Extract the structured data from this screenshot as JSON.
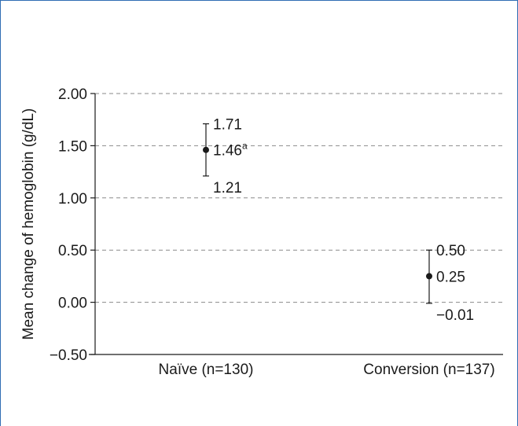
{
  "chart_data": {
    "type": "scatter",
    "ylabel": "Mean change of hemoglobin (g/dL)",
    "ylim": [
      -0.5,
      2.0
    ],
    "yticks": [
      2.0,
      1.5,
      1.0,
      0.5,
      0.0,
      -0.5
    ],
    "ytick_labels": [
      "2.00",
      "1.50",
      "1.00",
      "0.50",
      "0.00",
      "−0.50"
    ],
    "grid": "horizontal dashed",
    "categories": [
      "Naïve (n=130)",
      "Conversion (n=137)"
    ],
    "points": [
      {
        "category": "Naïve (n=130)",
        "mean": 1.46,
        "upper": 1.71,
        "lower": 1.21,
        "mean_label": "1.46",
        "mean_superscript": "a",
        "upper_label": "1.71",
        "lower_label": "1.21"
      },
      {
        "category": "Conversion (n=137)",
        "mean": 0.25,
        "upper": 0.5,
        "lower": -0.01,
        "mean_label": "0.25",
        "mean_superscript": "",
        "upper_label": "0.50",
        "lower_label": "−0.01"
      }
    ]
  }
}
